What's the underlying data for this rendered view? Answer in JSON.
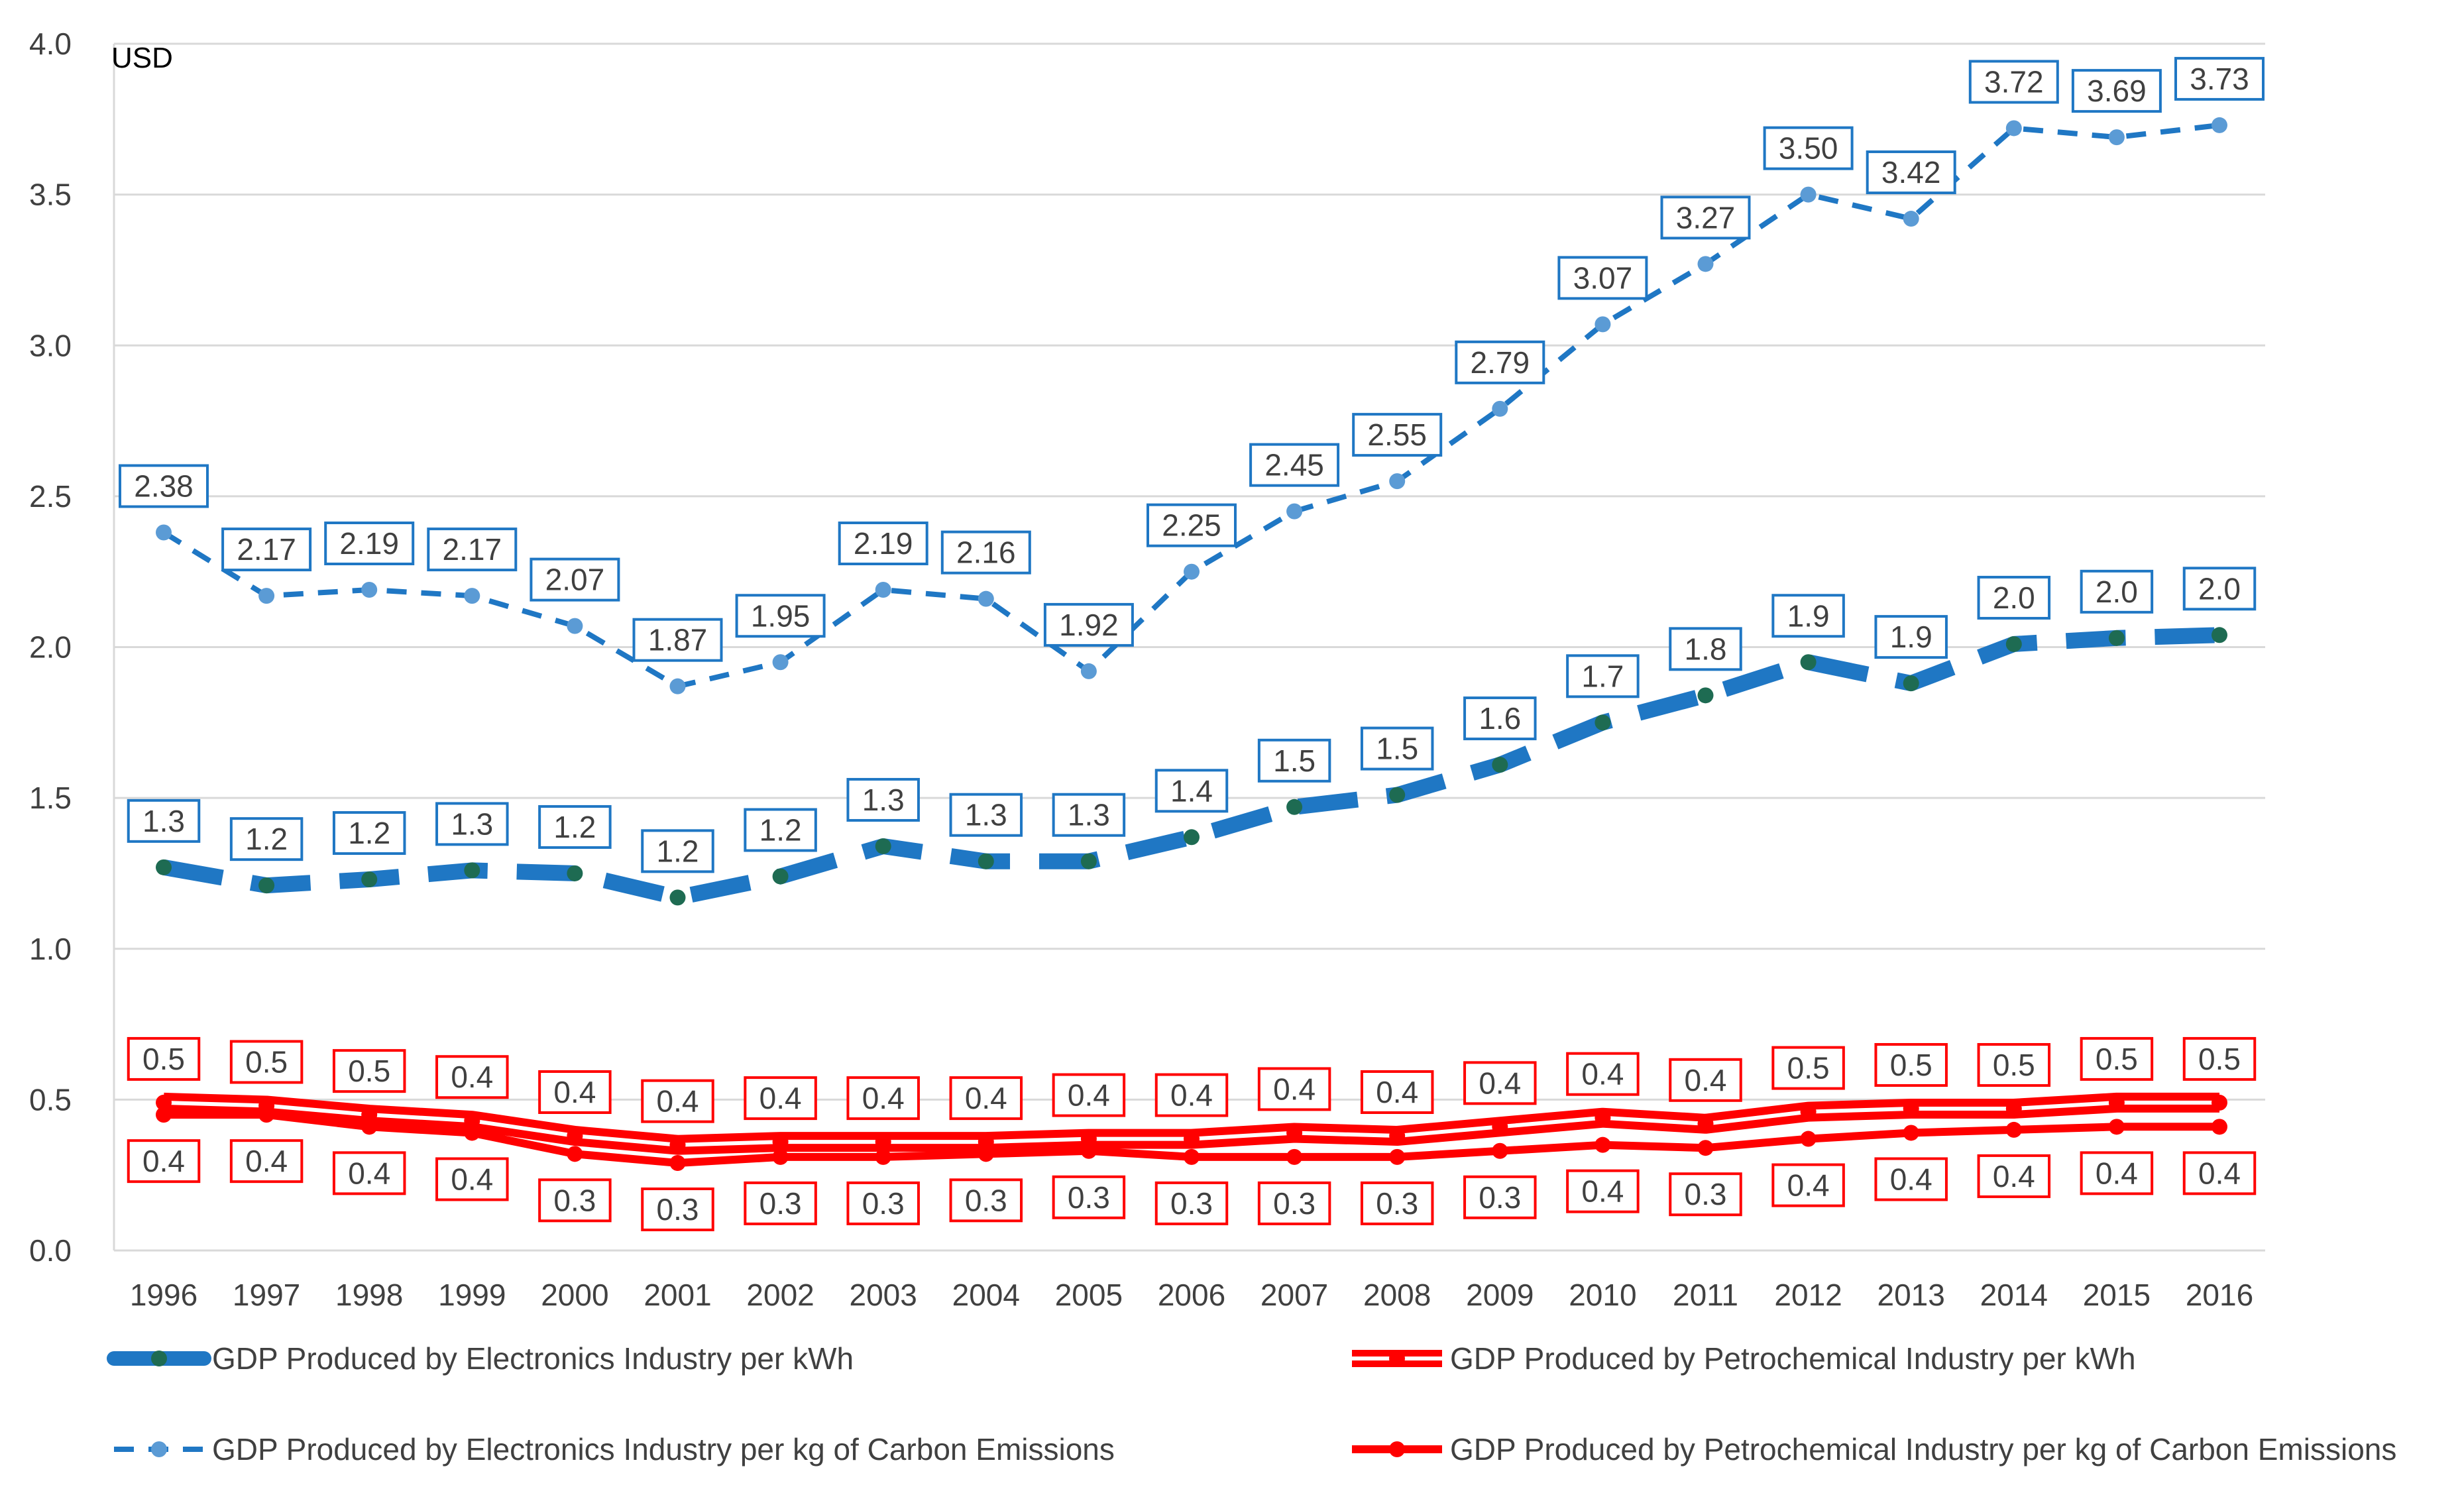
{
  "chart_data": {
    "type": "line",
    "title": "",
    "unit_label": "USD",
    "xlabel": "",
    "ylabel": "",
    "ylim": [
      0,
      4.0
    ],
    "yticks": [
      0.0,
      0.5,
      1.0,
      1.5,
      2.0,
      2.5,
      3.0,
      3.5,
      4.0
    ],
    "ytick_labels": [
      "0.0",
      "0.5",
      "1.0",
      "1.5",
      "2.0",
      "2.5",
      "3.0",
      "3.5",
      "4.0"
    ],
    "grid": true,
    "legend_position": "bottom",
    "categories": [
      "1996",
      "1997",
      "1998",
      "1999",
      "2000",
      "2001",
      "2002",
      "2003",
      "2004",
      "2005",
      "2006",
      "2007",
      "2008",
      "2009",
      "2010",
      "2011",
      "2012",
      "2013",
      "2014",
      "2015",
      "2016"
    ],
    "series": [
      {
        "name": "GDP Produced by Electronics Industry per kWh",
        "color": "#1F77C4",
        "marker_color": "#1E6B52",
        "style": "long-dash",
        "label_position": "above",
        "values": [
          1.27,
          1.21,
          1.23,
          1.26,
          1.25,
          1.17,
          1.24,
          1.34,
          1.29,
          1.29,
          1.37,
          1.47,
          1.51,
          1.61,
          1.75,
          1.84,
          1.95,
          1.88,
          2.01,
          2.03,
          2.04
        ],
        "labels": [
          "1.3",
          "1.2",
          "1.2",
          "1.3",
          "1.2",
          "1.2",
          "1.2",
          "1.3",
          "1.3",
          "1.3",
          "1.4",
          "1.5",
          "1.5",
          "1.6",
          "1.7",
          "1.8",
          "1.9",
          "1.9",
          "2.0",
          "2.0",
          "2.0"
        ]
      },
      {
        "name": "GDP Produced by Electronics Industry per kg of Carbon Emissions",
        "color": "#1F77C4",
        "marker_color": "#5B9BD5",
        "style": "short-dash",
        "label_position": "above",
        "values": [
          2.38,
          2.17,
          2.19,
          2.17,
          2.07,
          1.87,
          1.95,
          2.19,
          2.16,
          1.92,
          2.25,
          2.45,
          2.55,
          2.79,
          3.07,
          3.27,
          3.5,
          3.42,
          3.72,
          3.69,
          3.73
        ],
        "labels": [
          "2.38",
          "2.17",
          "2.19",
          "2.17",
          "2.07",
          "1.87",
          "1.95",
          "2.19",
          "2.16",
          "1.92",
          "2.25",
          "2.45",
          "2.55",
          "2.79",
          "3.07",
          "3.27",
          "3.50",
          "3.42",
          "3.72",
          "3.69",
          "3.73"
        ]
      },
      {
        "name": "GDP Produced by Petrochemical Industry per kWh",
        "color": "#FF0000",
        "marker_color": "#FF0000",
        "style": "double",
        "label_position": "above",
        "values": [
          0.49,
          0.48,
          0.45,
          0.43,
          0.38,
          0.35,
          0.36,
          0.36,
          0.36,
          0.37,
          0.37,
          0.39,
          0.38,
          0.41,
          0.44,
          0.42,
          0.46,
          0.47,
          0.47,
          0.49,
          0.49
        ],
        "labels": [
          "0.5",
          "0.5",
          "0.5",
          "0.4",
          "0.4",
          "0.4",
          "0.4",
          "0.4",
          "0.4",
          "0.4",
          "0.4",
          "0.4",
          "0.4",
          "0.4",
          "0.4",
          "0.4",
          "0.5",
          "0.5",
          "0.5",
          "0.5",
          "0.5"
        ]
      },
      {
        "name": "GDP Produced by Petrochemical Industry per kg of Carbon Emissions",
        "color": "#FF0000",
        "marker_color": "#FF0000",
        "style": "solid",
        "label_position": "below",
        "values": [
          0.45,
          0.45,
          0.41,
          0.39,
          0.32,
          0.29,
          0.31,
          0.31,
          0.32,
          0.33,
          0.31,
          0.31,
          0.31,
          0.33,
          0.35,
          0.34,
          0.37,
          0.39,
          0.4,
          0.41,
          0.41
        ],
        "labels": [
          "0.4",
          "0.4",
          "0.4",
          "0.4",
          "0.3",
          "0.3",
          "0.3",
          "0.3",
          "0.3",
          "0.3",
          "0.3",
          "0.3",
          "0.3",
          "0.3",
          "0.4",
          "0.3",
          "0.4",
          "0.4",
          "0.4",
          "0.4",
          "0.4"
        ]
      }
    ]
  }
}
